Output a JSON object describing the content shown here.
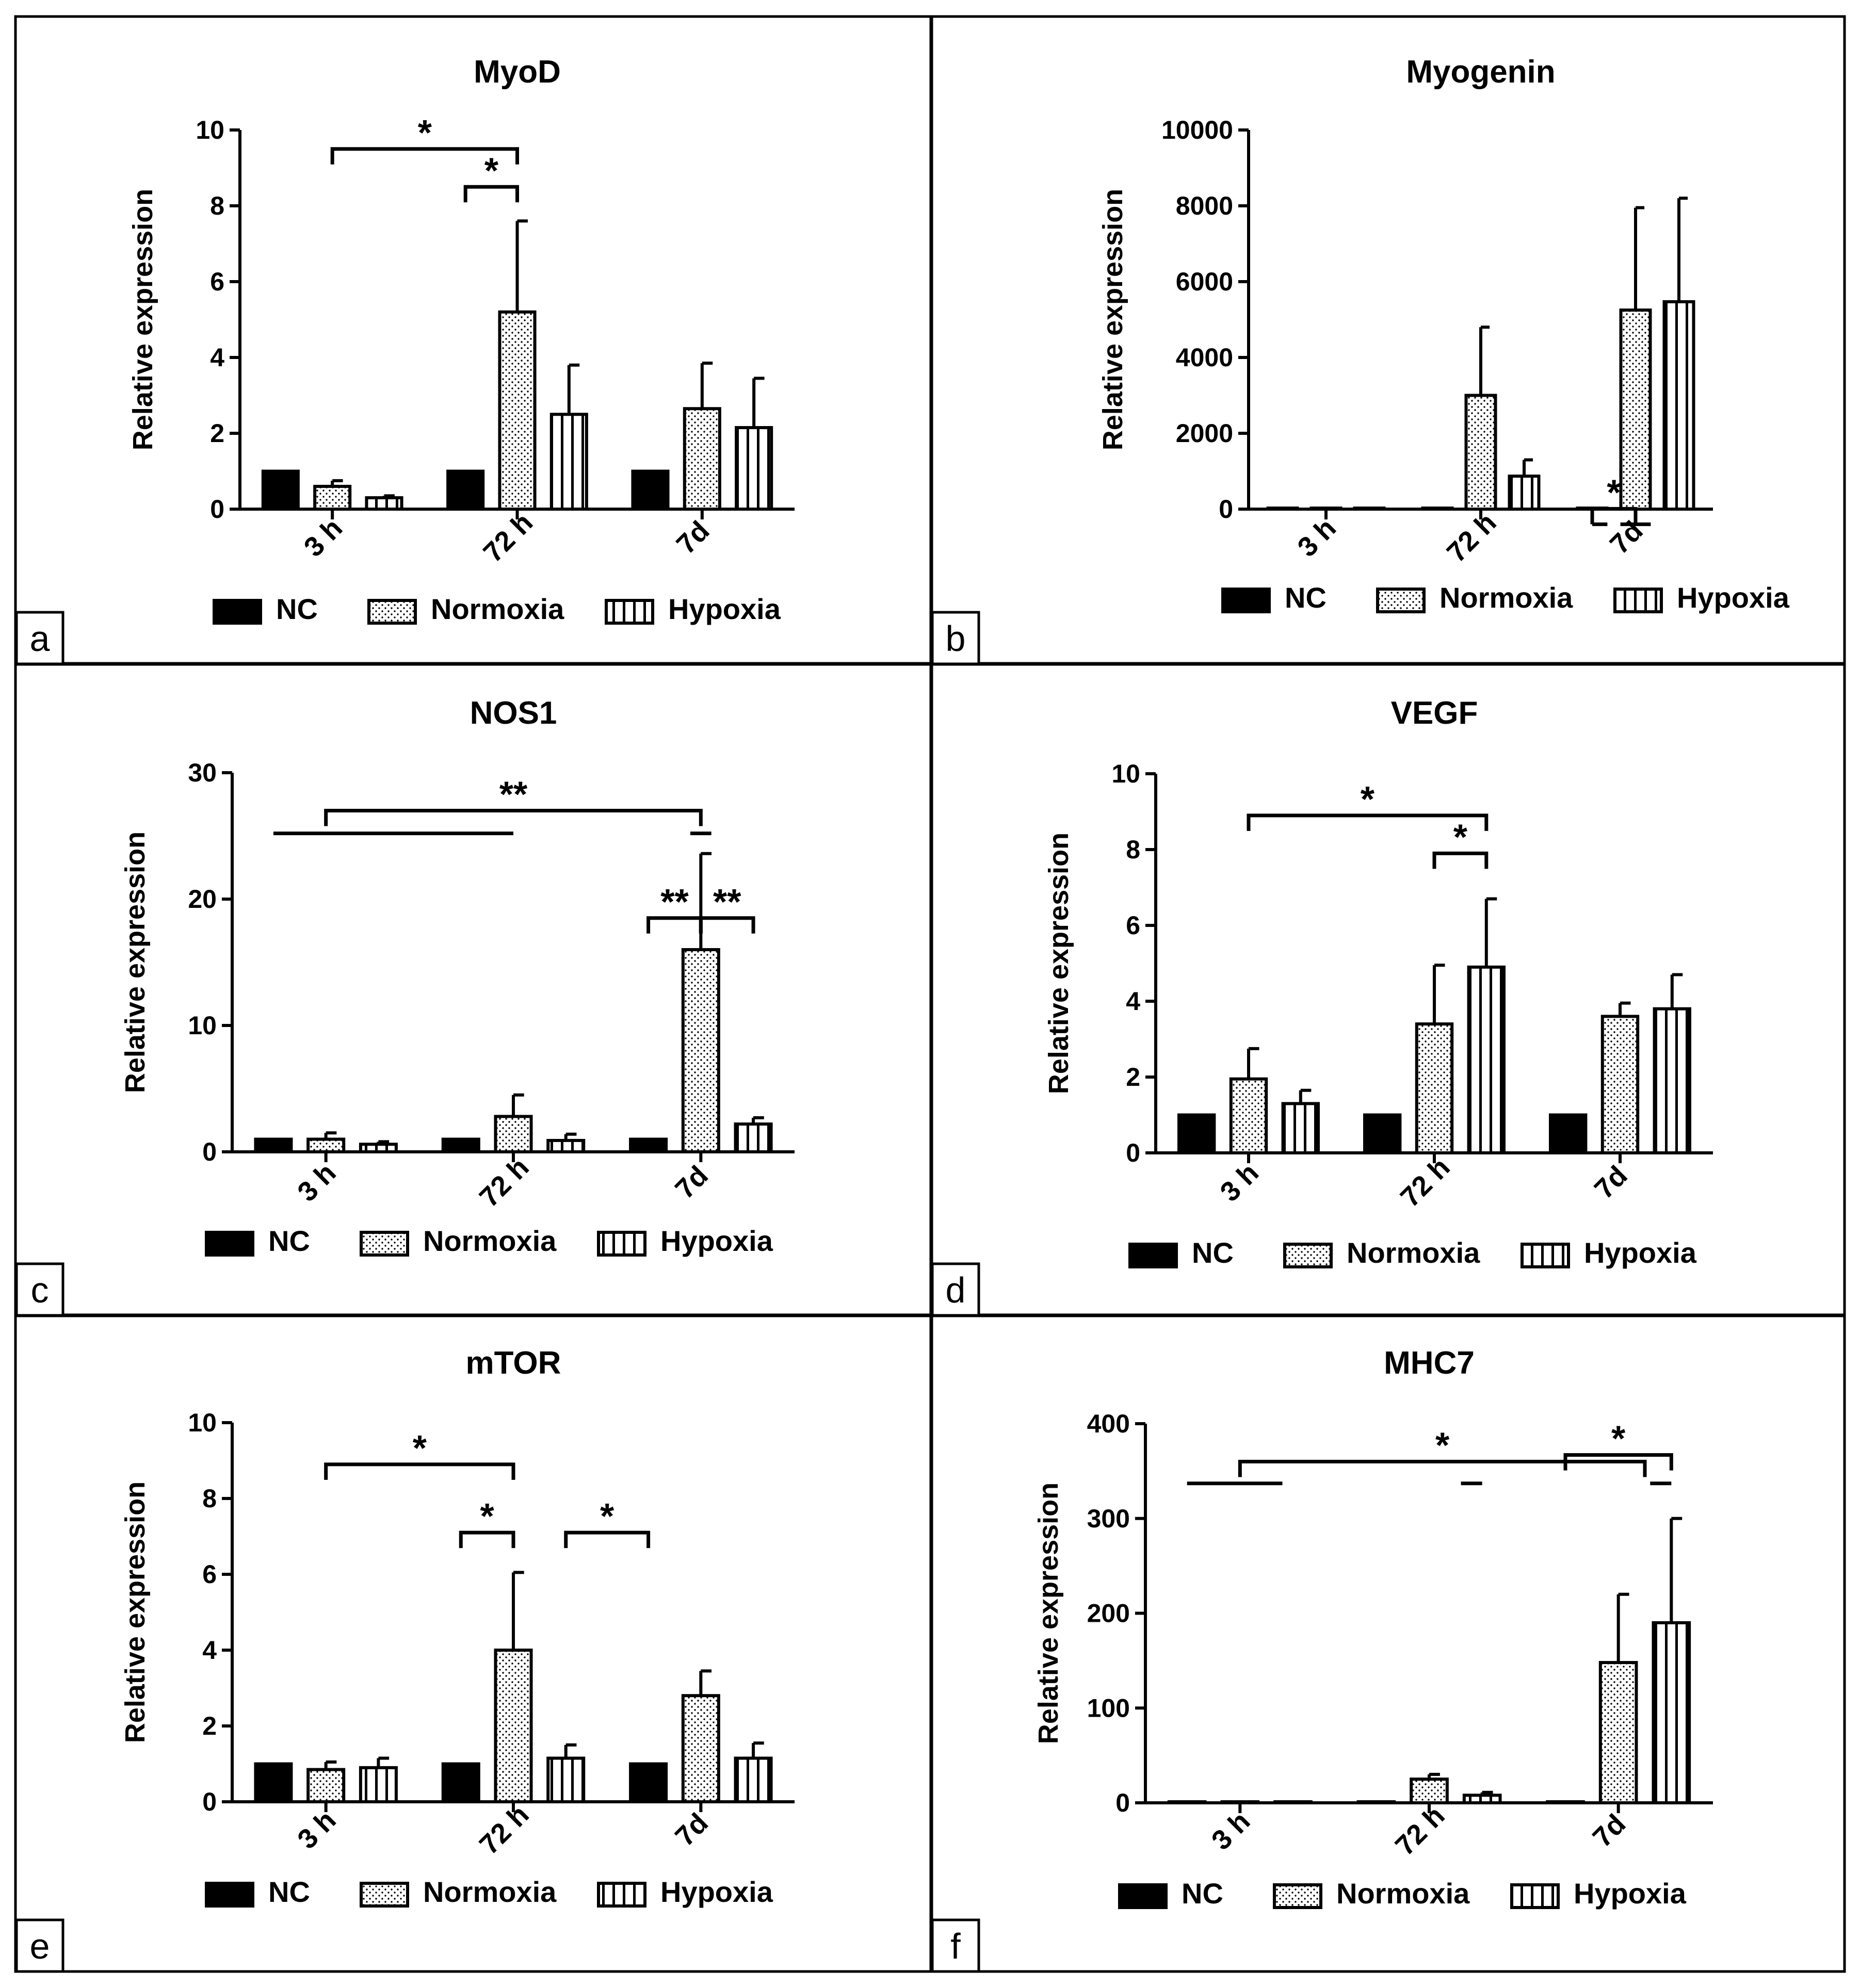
{
  "figure": {
    "series_names": [
      "NC",
      "Normoxia",
      "Hypoxia"
    ],
    "categories": [
      "3 h",
      "72 h",
      "7d"
    ],
    "y_axis_label": "Relative expression"
  },
  "chart_data": [
    {
      "panel_label": "a",
      "title": "MyoD",
      "type": "bar",
      "ylabel": "Relative expression",
      "ylim": [
        0,
        10
      ],
      "yticks": [
        "0",
        "2",
        "4",
        "6",
        "8",
        "10"
      ],
      "categories": [
        "3 h",
        "72 h",
        "7d"
      ],
      "series": [
        {
          "name": "NC",
          "values": [
            1,
            1,
            1
          ],
          "errors": [
            0,
            0,
            0
          ]
        },
        {
          "name": "Normoxia",
          "values": [
            0.6,
            5.2,
            2.65
          ],
          "errors": [
            0.15,
            2.4,
            1.2
          ]
        },
        {
          "name": "Hypoxia",
          "values": [
            0.3,
            2.5,
            2.15
          ],
          "errors": [
            0.05,
            1.3,
            1.3
          ]
        }
      ],
      "annotations": [
        "*",
        "*"
      ]
    },
    {
      "panel_label": "b",
      "title": "Myogenin",
      "type": "bar",
      "ylabel": "Relative expression",
      "ylim": [
        0,
        10000
      ],
      "yticks": [
        "0",
        "2000",
        "4000",
        "6000",
        "8000",
        "10000"
      ],
      "categories": [
        "3 h",
        "72 h",
        "7d"
      ],
      "series": [
        {
          "name": "NC",
          "values": [
            1,
            1,
            1
          ],
          "errors": [
            0,
            0,
            0
          ]
        },
        {
          "name": "Normoxia",
          "values": [
            1,
            3000,
            5250
          ],
          "errors": [
            0,
            1800,
            2700
          ]
        },
        {
          "name": "Hypoxia",
          "values": [
            1,
            870,
            5470
          ],
          "errors": [
            0,
            430,
            2730
          ]
        }
      ],
      "annotations": [
        "*"
      ]
    },
    {
      "panel_label": "c",
      "title": "NOS1",
      "type": "bar",
      "ylabel": "Relative expression",
      "ylim": [
        0,
        30
      ],
      "yticks": [
        "0",
        "10",
        "20",
        "30"
      ],
      "categories": [
        "3 h",
        "72 h",
        "7d"
      ],
      "series": [
        {
          "name": "NC",
          "values": [
            1,
            1,
            1
          ],
          "errors": [
            0,
            0,
            0
          ]
        },
        {
          "name": "Normoxia",
          "values": [
            1,
            2.8,
            16
          ],
          "errors": [
            0.5,
            1.7,
            7.6
          ]
        },
        {
          "name": "Hypoxia",
          "values": [
            0.6,
            0.9,
            2.2
          ],
          "errors": [
            0.2,
            0.5,
            0.5
          ]
        }
      ],
      "annotations": [
        "**",
        "**",
        "**"
      ]
    },
    {
      "panel_label": "d",
      "title": "VEGF",
      "type": "bar",
      "ylabel": "Relative expression",
      "ylim": [
        0,
        10
      ],
      "yticks": [
        "0",
        "2",
        "4",
        "6",
        "8",
        "10"
      ],
      "categories": [
        "3 h",
        "72 h",
        "7d"
      ],
      "series": [
        {
          "name": "NC",
          "values": [
            1,
            1,
            1
          ],
          "errors": [
            0,
            0,
            0
          ]
        },
        {
          "name": "Normoxia",
          "values": [
            1.95,
            3.4,
            3.6
          ],
          "errors": [
            0.8,
            1.55,
            0.35
          ]
        },
        {
          "name": "Hypoxia",
          "values": [
            1.3,
            4.9,
            3.8
          ],
          "errors": [
            0.35,
            1.8,
            0.9
          ]
        }
      ],
      "annotations": [
        "*",
        "*"
      ]
    },
    {
      "panel_label": "e",
      "title": "mTOR",
      "type": "bar",
      "ylabel": "Relative expression",
      "ylim": [
        0,
        10
      ],
      "yticks": [
        "0",
        "2",
        "4",
        "6",
        "8",
        "10"
      ],
      "categories": [
        "3 h",
        "72 h",
        "7d"
      ],
      "series": [
        {
          "name": "NC",
          "values": [
            1,
            1,
            1
          ],
          "errors": [
            0,
            0,
            0
          ]
        },
        {
          "name": "Normoxia",
          "values": [
            0.85,
            4.0,
            2.8
          ],
          "errors": [
            0.2,
            2.05,
            0.65
          ]
        },
        {
          "name": "Hypoxia",
          "values": [
            0.9,
            1.15,
            1.15
          ],
          "errors": [
            0.25,
            0.35,
            0.4
          ]
        }
      ],
      "annotations": [
        "*",
        "*",
        "*"
      ]
    },
    {
      "panel_label": "f",
      "title": "MHC7",
      "type": "bar",
      "ylabel": "Relative expression",
      "ylim": [
        0,
        400
      ],
      "yticks": [
        "0",
        "100",
        "200",
        "300",
        "400"
      ],
      "categories": [
        "3 h",
        "72 h",
        "7d"
      ],
      "series": [
        {
          "name": "NC",
          "values": [
            1,
            1,
            1
          ],
          "errors": [
            0,
            0,
            0
          ]
        },
        {
          "name": "Normoxia",
          "values": [
            1,
            25,
            148
          ],
          "errors": [
            0,
            5,
            72
          ]
        },
        {
          "name": "Hypoxia",
          "values": [
            1,
            8,
            190
          ],
          "errors": [
            0,
            3,
            110
          ]
        }
      ],
      "annotations": [
        "*",
        "*"
      ]
    }
  ]
}
